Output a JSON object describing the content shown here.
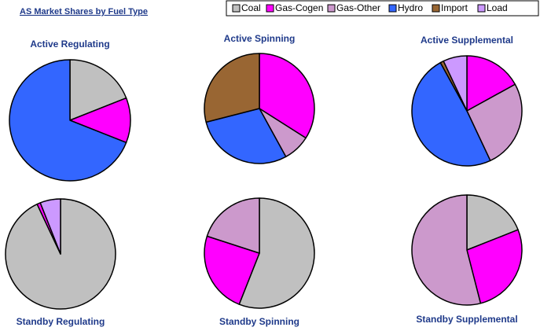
{
  "title": "AS Market Shares by Fuel Type",
  "legend": [
    {
      "name": "Coal",
      "color": "#c0c0c0"
    },
    {
      "name": "Gas-Cogen",
      "color": "#ff00ff"
    },
    {
      "name": "Gas-Other",
      "color": "#cc99cc"
    },
    {
      "name": "Hydro",
      "color": "#3366ff"
    },
    {
      "name": "Import",
      "color": "#996633"
    },
    {
      "name": "Load",
      "color": "#cc99ff"
    }
  ],
  "chart_data": [
    {
      "type": "pie",
      "title": "Active Regulating",
      "categories": [
        "Coal",
        "Gas-Cogen",
        "Hydro"
      ],
      "values": [
        19,
        12,
        69
      ]
    },
    {
      "type": "pie",
      "title": "Active Spinning",
      "categories": [
        "Gas-Cogen",
        "Gas-Other",
        "Hydro",
        "Import"
      ],
      "values": [
        34,
        8,
        29,
        29
      ]
    },
    {
      "type": "pie",
      "title": "Active Supplemental",
      "categories": [
        "Gas-Cogen",
        "Gas-Other",
        "Hydro",
        "Import",
        "Load"
      ],
      "values": [
        17,
        26,
        49,
        1,
        7
      ]
    },
    {
      "type": "pie",
      "title": "Standby Regulating",
      "categories": [
        "Coal",
        "Gas-Cogen",
        "Load"
      ],
      "values": [
        93,
        1,
        6
      ]
    },
    {
      "type": "pie",
      "title": "Standby Spinning",
      "categories": [
        "Coal",
        "Gas-Cogen",
        "Gas-Other"
      ],
      "values": [
        56,
        24,
        20
      ]
    },
    {
      "type": "pie",
      "title": "Standby Supplemental",
      "categories": [
        "Coal",
        "Gas-Cogen",
        "Gas-Other"
      ],
      "values": [
        19,
        27,
        54
      ]
    }
  ]
}
